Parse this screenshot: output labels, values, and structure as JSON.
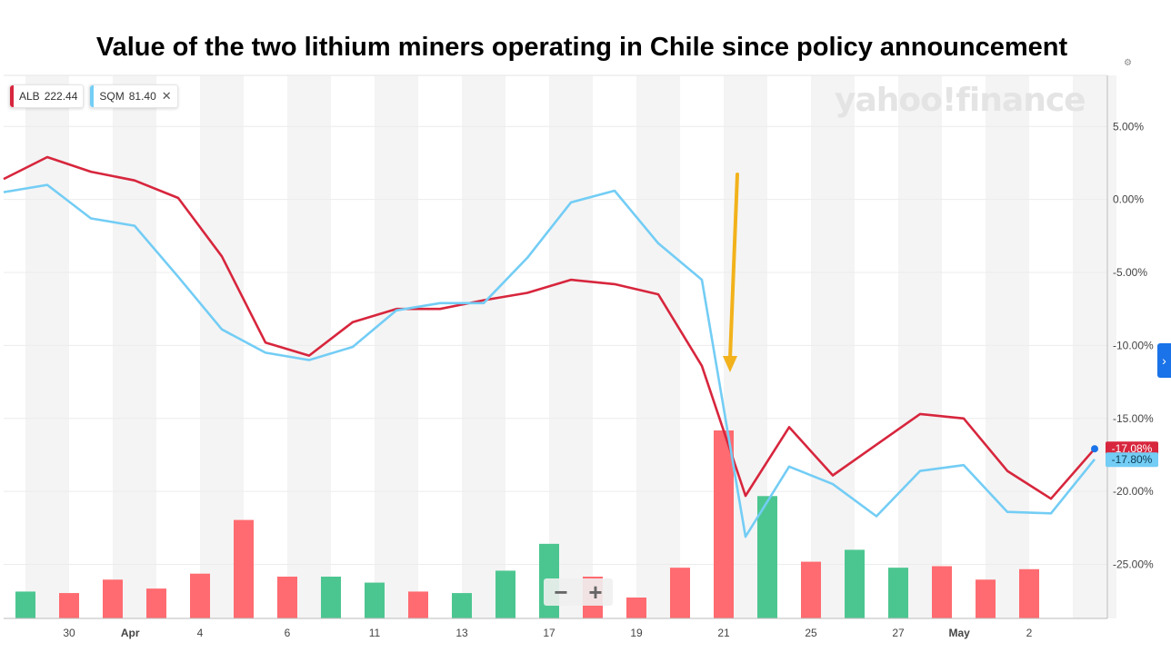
{
  "title": "Value of the two lithium miners operating in Chile since policy announcement",
  "legend": [
    {
      "symbol": "ALB",
      "value": "222.44",
      "color": "#d7263d"
    },
    {
      "symbol": "SQM",
      "value": "81.40",
      "color": "#73cdf5",
      "closable": true
    }
  ],
  "watermark": "yahoo!finance",
  "zoom": {
    "minus": "−",
    "plus": "+"
  },
  "side_button": "›",
  "chart_data": {
    "type": "line",
    "y_unit": "%",
    "ylim": [
      -28.7,
      8.5
    ],
    "y_ticks": [
      5,
      0,
      -5,
      -10,
      -15,
      -20,
      -25
    ],
    "y_tick_labels": [
      "5.00%",
      "0.00%",
      "-5.00%",
      "-10.00%",
      "-15.00%",
      "-20.00%",
      "-25.00%"
    ],
    "x_labels": [
      {
        "i": 1.5,
        "label": "30"
      },
      {
        "i": 2.9,
        "label": "Apr",
        "bold": true
      },
      {
        "i": 4.5,
        "label": "4"
      },
      {
        "i": 6.5,
        "label": "6"
      },
      {
        "i": 8.5,
        "label": "11"
      },
      {
        "i": 10.5,
        "label": "13"
      },
      {
        "i": 12.5,
        "label": "17"
      },
      {
        "i": 14.5,
        "label": "19"
      },
      {
        "i": 16.5,
        "label": "21"
      },
      {
        "i": 18.5,
        "label": "25"
      },
      {
        "i": 20.5,
        "label": "27"
      },
      {
        "i": 21.9,
        "label": "May",
        "bold": true
      },
      {
        "i": 23.5,
        "label": "2"
      }
    ],
    "series": [
      {
        "name": "ALB",
        "color": "#d7263d",
        "values": [
          1.4,
          2.9,
          1.9,
          1.3,
          0.1,
          -3.9,
          -9.8,
          -10.7,
          -8.4,
          -7.5,
          -7.5,
          -6.9,
          -6.4,
          -5.5,
          -5.8,
          -6.5,
          -11.4,
          -20.3,
          -15.6,
          -18.9,
          -16.8,
          -14.7,
          -15.0,
          -18.6,
          -20.5,
          -17.08
        ],
        "last_label": "-17.08%"
      },
      {
        "name": "SQM",
        "color": "#73cdf5",
        "values": [
          0.5,
          1.0,
          -1.3,
          -1.8,
          -5.3,
          -8.9,
          -10.5,
          -11.0,
          -10.1,
          -7.6,
          -7.1,
          -7.1,
          -4.0,
          -0.2,
          0.6,
          -3.0,
          -5.5,
          -23.1,
          -18.3,
          -19.5,
          -21.7,
          -18.6,
          -18.2,
          -21.4,
          -21.5,
          -17.8
        ],
        "last_label": "-17.80%"
      }
    ],
    "volume": {
      "values": [
        9,
        8.5,
        13,
        10,
        15,
        33,
        14,
        14,
        12,
        9,
        8.5,
        16,
        25,
        14,
        7,
        17,
        63,
        41,
        19,
        23,
        17,
        17.5,
        13,
        16.5
      ],
      "up": [
        true,
        false,
        false,
        false,
        false,
        false,
        false,
        true,
        true,
        false,
        true,
        true,
        true,
        false,
        false,
        false,
        false,
        true,
        false,
        true,
        true,
        false,
        false,
        false
      ]
    },
    "annotation": {
      "type": "arrow",
      "color": "#f2b21b",
      "points_to": "21"
    }
  }
}
